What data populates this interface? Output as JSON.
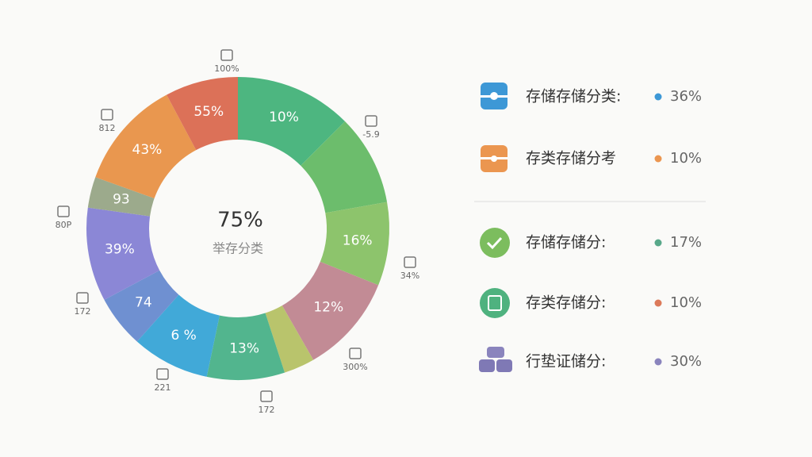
{
  "chart_data": {
    "type": "pie",
    "center_value": "75%",
    "center_label": "举存分类",
    "categories": [
      "10%",
      null,
      "16%",
      "12%",
      null,
      "13%",
      "6 %",
      "74",
      "39%",
      "93",
      "43%",
      "55%"
    ],
    "values": [
      12.5,
      9.7,
      8.9,
      10.6,
      3.3,
      8.3,
      8.3,
      5.6,
      10,
      3.3,
      11.7,
      7.8
    ],
    "colors": [
      "#4db680",
      "#6cbd6c",
      "#8dc46c",
      "#c28b95",
      "#b9c46c",
      "#52b58e",
      "#41a9d8",
      "#6f90d1",
      "#8b87d6",
      "#9caa8c",
      "#e9974f",
      "#dc7158"
    ],
    "outer_labels": [
      "100%",
      "-5.9",
      "34%",
      "300%",
      "172",
      "221",
      "172",
      "80P",
      "812"
    ],
    "legend": [
      {
        "name": "存储存储分类:",
        "color": "#3d98d6",
        "value": "36%"
      },
      {
        "name": "存类存储分考",
        "color": "#eb9650",
        "value": "10%"
      },
      {
        "name": "存储存储分:",
        "color": "#58a88a",
        "value": "17%"
      },
      {
        "name": "存类存储分:",
        "color": "#dc7a5a",
        "value": "10%"
      },
      {
        "name": "行垫证储分:",
        "color": "#8a84bd",
        "value": "30%"
      }
    ]
  }
}
